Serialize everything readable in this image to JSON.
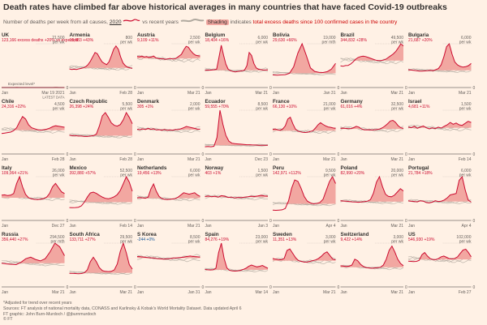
{
  "header": {
    "title": "Death rates have climbed far above historical averages in many countries that have faced Covid-19 outbreaks",
    "sub_prefix": "Number of deaths per week from all causes,",
    "sub_year": "2020",
    "sub_vs": "vs recent years",
    "sub_shading": "Shading",
    "sub_indicates": "indicates",
    "sub_red": "total excess deaths since 100 confirmed cases in the country"
  },
  "colors": {
    "background": "#fff1e5",
    "line": "#cc0a2e",
    "fill": "#f2a7a1",
    "history": "#b0a99f",
    "text": "#33302e"
  },
  "chart_data": [
    {
      "type": "line",
      "country": "UK",
      "stat": "123,166 excess deaths +20% vs expected",
      "ymax": "21,500",
      "ymax_unit": "per wk",
      "x_start": "Jan",
      "x_end": "Mar 19 2021",
      "extra_label": "LATEST DATA",
      "annotation": "Expected level*",
      "values": [
        10.5,
        10,
        10.2,
        10.4,
        10.8,
        10.4,
        14,
        19,
        21.4,
        17,
        13,
        10,
        9.6,
        9.3,
        9.1,
        9,
        9,
        9.1,
        9.4,
        9.6,
        10,
        10.3,
        10.8,
        11.5,
        12,
        12.3,
        13.3,
        17,
        20,
        21.5,
        18,
        14.5,
        12,
        11
      ]
    },
    {
      "type": "line",
      "country": "Armenia",
      "stat": "10,983 +43%",
      "ymax": "800",
      "ymax_unit": "per wk",
      "x_start": "Jan",
      "x_end": "Feb 28",
      "values": [
        340,
        330,
        335,
        330,
        340,
        350,
        360,
        380,
        420,
        480,
        560,
        640,
        620,
        540,
        470,
        440,
        420,
        470,
        580,
        700,
        760,
        700,
        560,
        450,
        400,
        370,
        360,
        350
      ]
    },
    {
      "type": "line",
      "country": "Austria",
      "stat": "9,109 +11%",
      "ymax": "2,500",
      "ymax_unit": "per wk",
      "x_start": "Jan",
      "x_end": "Mar 21",
      "values": [
        1780,
        1760,
        1790,
        1740,
        1770,
        1720,
        1740,
        1800,
        1700,
        1660,
        1640,
        1650,
        1610,
        1630,
        1660,
        1640,
        1630,
        1700,
        1800,
        1900,
        2150,
        2350,
        2300,
        2100,
        1950,
        1850,
        1820,
        1800
      ]
    },
    {
      "type": "line",
      "country": "Belgium",
      "stat": "18,404 +16%",
      "ymax": "6,000",
      "ymax_unit": "per wk",
      "x_start": "Jan",
      "x_end": "Mar 21",
      "values": [
        2350,
        2400,
        2380,
        2400,
        2450,
        2500,
        4100,
        5800,
        4400,
        3200,
        2500,
        2300,
        2200,
        2150,
        2200,
        2250,
        2300,
        2400,
        3000,
        4800,
        4400,
        3300,
        2700,
        2500,
        2450,
        2400,
        2400,
        2400
      ]
    },
    {
      "type": "line",
      "country": "Bolivia",
      "stat": "29,630 +66%",
      "ymax": "19,000",
      "ymax_unit": "per mth",
      "x_start": "Jan",
      "x_end": "Jan 31",
      "values": [
        5500,
        5400,
        5500,
        5600,
        6200,
        9000,
        15000,
        19000,
        14000,
        8500,
        7000,
        6600,
        6500,
        6900,
        8000,
        10500
      ]
    },
    {
      "type": "line",
      "country": "Brazil",
      "stat": "344,832 +28%",
      "ymax": "49,500",
      "ymax_unit": "per wk",
      "x_start": "Jan",
      "x_end": "Mar 21",
      "values": [
        24500,
        24000,
        24800,
        25000,
        26500,
        29000,
        32000,
        34000,
        35000,
        35500,
        35000,
        34000,
        33000,
        32000,
        31000,
        30500,
        30500,
        31000,
        32000,
        34000,
        36000,
        38000,
        41000,
        45000,
        49500,
        47000
      ]
    },
    {
      "type": "line",
      "country": "Bulgaria",
      "stat": "21,687 +20%",
      "ymax": "6,000",
      "ymax_unit": "per wk",
      "x_start": "Jan",
      "x_end": "Mar 21",
      "values": [
        2450,
        2400,
        2350,
        2300,
        2250,
        2250,
        2280,
        2300,
        2350,
        2300,
        2450,
        2600,
        3100,
        4200,
        5600,
        6000,
        4600,
        3500,
        3100,
        2900,
        2800,
        2850,
        3000,
        3300
      ]
    },
    {
      "type": "line",
      "country": "Chile",
      "stat": "24,316 +22%",
      "ymax": "4,500",
      "ymax_unit": "per wk",
      "x_start": "Jan",
      "x_end": "Feb 28",
      "values": [
        2100,
        2150,
        2200,
        2250,
        2400,
        2700,
        3300,
        3850,
        3600,
        3000,
        2700,
        2600,
        2500,
        2450,
        2500,
        2550,
        2650,
        2800,
        2900,
        2850,
        2800,
        2750
      ]
    },
    {
      "type": "line",
      "country": "Czech Republic",
      "stat": "26,398 +24%",
      "ymax": "5,500",
      "ymax_unit": "per wk",
      "x_start": "Jan",
      "x_end": "Feb 28",
      "values": [
        2350,
        2300,
        2300,
        2250,
        2250,
        2200,
        2200,
        2250,
        2300,
        2500,
        3500,
        4800,
        5200,
        4600,
        3900,
        3600,
        3500,
        3700,
        4300,
        5200,
        4600,
        3800
      ]
    },
    {
      "type": "line",
      "country": "Denmark",
      "stat": "305 +1%",
      "ymax": "2,000",
      "ymax_unit": "per wk",
      "x_start": "Jan",
      "x_end": "Mar 21",
      "values": [
        1130,
        1110,
        1150,
        1120,
        1170,
        1130,
        1150,
        1100,
        1110,
        1090,
        1120,
        1080,
        1100,
        1090,
        1120,
        1110,
        1150,
        1200,
        1260,
        1230,
        1200,
        1170,
        1140,
        1130
      ]
    },
    {
      "type": "line",
      "country": "Ecuador",
      "stat": "59,555 +70%",
      "ymax": "8,500",
      "ymax_unit": "per wk",
      "x_start": "Jan",
      "x_end": "Dec 23",
      "values": [
        1400,
        1450,
        1400,
        1500,
        3200,
        8500,
        5800,
        3600,
        2500,
        2100,
        2000,
        1950,
        1900,
        1850,
        1800,
        1800,
        1750,
        1750,
        1700,
        1700,
        1700,
        1700
      ]
    },
    {
      "type": "line",
      "country": "France",
      "stat": "66,130 +10%",
      "ymax": "21,000",
      "ymax_unit": "per wk",
      "x_start": "Jan",
      "x_end": "Mar 21",
      "values": [
        11800,
        12000,
        11600,
        11400,
        12000,
        13500,
        16800,
        17600,
        14500,
        12000,
        11000,
        10600,
        10400,
        10300,
        10500,
        10800,
        11200,
        12500,
        14000,
        15000,
        14200,
        13500,
        13000,
        12800,
        12500,
        12300
      ]
    },
    {
      "type": "line",
      "country": "Germany",
      "stat": "61,016 +4%",
      "ymax": "32,500",
      "ymax_unit": "per wk",
      "x_start": "Jan",
      "x_end": "Mar 21",
      "values": [
        19000,
        19200,
        19000,
        18800,
        18900,
        19500,
        20500,
        20000,
        18600,
        18000,
        17900,
        18000,
        17800,
        18000,
        18200,
        18600,
        19500,
        20800,
        22500,
        24500,
        25000,
        23500,
        21000,
        19500,
        19000
      ]
    },
    {
      "type": "line",
      "country": "Israel",
      "stat": "4,681 +11%",
      "ymax": "1,500",
      "ymax_unit": "per wk",
      "x_start": "Jan",
      "x_end": "Feb 14",
      "values": [
        920,
        900,
        950,
        880,
        920,
        960,
        900,
        860,
        900,
        870,
        920,
        890,
        950,
        1000,
        1080,
        1020,
        1060,
        1000,
        980,
        1050,
        1120,
        1080
      ]
    },
    {
      "type": "line",
      "country": "Italy",
      "stat": "109,064 +21%",
      "ymax": "26,000",
      "ymax_unit": "per wk",
      "x_start": "Jan",
      "x_end": "Dec 27",
      "values": [
        15000,
        15200,
        14800,
        15000,
        16000,
        22000,
        26000,
        20000,
        15500,
        13500,
        12800,
        12500,
        12400,
        12600,
        13000,
        13800,
        16000,
        20000,
        22000,
        19500,
        17000,
        16000
      ]
    },
    {
      "type": "line",
      "country": "Mexico",
      "stat": "392,880 +57%",
      "ymax": "52,500",
      "ymax_unit": "per wk",
      "x_start": "Jan",
      "x_end": "Feb 14",
      "values": [
        15500,
        15400,
        15500,
        15800,
        17500,
        22000,
        28000,
        33000,
        34000,
        32500,
        30000,
        28000,
        26500,
        26000,
        27000,
        28500,
        31000,
        36000,
        44000,
        52500,
        46000,
        35000
      ]
    },
    {
      "type": "line",
      "country": "Netherlands",
      "stat": "19,456 +13%",
      "ymax": "6,000",
      "ymax_unit": "per wk",
      "x_start": "Jan",
      "x_end": "Mar 21",
      "values": [
        3100,
        3150,
        3100,
        3050,
        3200,
        4300,
        5000,
        4000,
        3300,
        3000,
        2900,
        2850,
        2900,
        2950,
        3000,
        3200,
        3500,
        3800,
        3700,
        3600,
        3700,
        3800,
        3500,
        3300
      ]
    },
    {
      "type": "line",
      "country": "Norway",
      "stat": "403 +1%",
      "ymax": "1,500",
      "ymax_unit": "per wk",
      "x_start": "Jan",
      "x_end": "Jan 3",
      "values": [
        820,
        840,
        810,
        830,
        800,
        850,
        830,
        790,
        800,
        770,
        790,
        780,
        800,
        810,
        830,
        820,
        840,
        860,
        840,
        830
      ]
    },
    {
      "type": "line",
      "country": "Peru",
      "stat": "142,971 +112%",
      "ymax": "9,500",
      "ymax_unit": "per wk",
      "x_start": "Jan",
      "x_end": "Apr 4",
      "values": [
        2250,
        2200,
        2250,
        2300,
        2600,
        4200,
        7000,
        8800,
        8500,
        7000,
        5200,
        4200,
        3800,
        3600,
        3700,
        3900,
        4600,
        6500,
        8400,
        9500,
        8000
      ]
    },
    {
      "type": "line",
      "country": "Poland",
      "stat": "82,990 +20%",
      "ymax": "20,000",
      "ymax_unit": "per wk",
      "x_start": "Jan",
      "x_end": "Mar 21",
      "values": [
        9000,
        8900,
        8800,
        8600,
        8500,
        8400,
        8300,
        8500,
        8600,
        8800,
        9500,
        12500,
        17500,
        20000,
        15500,
        12000,
        11000,
        10800,
        11500,
        13000,
        14500,
        13500
      ]
    },
    {
      "type": "line",
      "country": "Portugal",
      "stat": "21,784 +18%",
      "ymax": "6,000",
      "ymax_unit": "per wk",
      "x_start": "Jan",
      "x_end": "Apr 4",
      "values": [
        2700,
        2650,
        2600,
        2550,
        2700,
        2650,
        2450,
        2400,
        2500,
        2700,
        2600,
        2650,
        2800,
        3100,
        3500,
        3600,
        3700,
        5500,
        6000,
        4200,
        2800,
        2500
      ]
    },
    {
      "type": "line",
      "country": "Russia",
      "stat": "356,440 +27%",
      "ymax": "294,500",
      "ymax_unit": "per mth",
      "x_start": "Jan",
      "x_end": "Mar 21",
      "values": [
        160000,
        155000,
        152000,
        150000,
        165000,
        190000,
        200000,
        185000,
        175000,
        190000,
        235000,
        294500,
        270000,
        210000
      ]
    },
    {
      "type": "line",
      "country": "South Africa",
      "stat": "133,711 +27%",
      "ymax": "29,500",
      "ymax_unit": "per wk",
      "x_start": "Jan",
      "x_end": "Mar 21",
      "values": [
        9200,
        9100,
        9000,
        8900,
        9000,
        9500,
        11500,
        17000,
        20000,
        17000,
        13000,
        11000,
        10500,
        10300,
        10500,
        11500,
        15500,
        24000,
        29500,
        23000,
        15000,
        12000
      ]
    },
    {
      "type": "line",
      "country": "S Korea",
      "stat": "-244 +0%",
      "stat_color": "#0f5499",
      "ymax": "8,500",
      "ymax_unit": "per wk",
      "x_start": "Jan",
      "x_end": "Jan 31",
      "values": [
        5900,
        5850,
        5800,
        5700,
        5650,
        5600,
        5500,
        5450,
        5400,
        5450,
        5500,
        5600,
        5650,
        5700,
        5800,
        5900,
        6000,
        5900,
        5850,
        5800
      ]
    },
    {
      "type": "line",
      "country": "Spain",
      "stat": "84,276 +19%",
      "ymax": "23,000",
      "ymax_unit": "per wk",
      "x_start": "Jan",
      "x_end": "Mar 14",
      "values": [
        9200,
        9000,
        8900,
        9000,
        9800,
        18000,
        23000,
        15000,
        10000,
        8700,
        8400,
        8300,
        8400,
        8700,
        9200,
        9800,
        10800,
        11500,
        11000,
        10500,
        10800,
        11300,
        10500,
        9800
      ]
    },
    {
      "type": "line",
      "country": "Sweden",
      "stat": "11,351 +13%",
      "ymax": "3,000",
      "ymax_unit": "per wk",
      "x_start": "Jan",
      "x_end": "Mar 21",
      "values": [
        1950,
        1900,
        1880,
        1860,
        1950,
        2500,
        2600,
        2300,
        2000,
        1800,
        1750,
        1700,
        1700,
        1750,
        1800,
        1850,
        1950,
        2100,
        2300,
        2400,
        2150,
        1900,
        1850
      ]
    },
    {
      "type": "line",
      "country": "Switzerland",
      "stat": "9,422 +14%",
      "ymax": "3,000",
      "ymax_unit": "per wk",
      "x_start": "Jan",
      "x_end": "Mar 21",
      "values": [
        1450,
        1430,
        1400,
        1420,
        1500,
        1900,
        1800,
        1550,
        1400,
        1320,
        1300,
        1280,
        1300,
        1320,
        1350,
        1500,
        1900,
        2500,
        2800,
        2400,
        1900,
        1600,
        1450
      ]
    },
    {
      "type": "line",
      "country": "US",
      "stat": "546,930 +19%",
      "ymax": "102,000",
      "ymax_unit": "per wk",
      "x_start": "Jan",
      "x_end": "Feb 27",
      "values": [
        60000,
        59500,
        59000,
        59500,
        62000,
        75000,
        80000,
        72000,
        66000,
        64000,
        63500,
        66000,
        70000,
        72000,
        69000,
        66000,
        65000,
        66500,
        70000,
        78000,
        86000,
        88000,
        80000,
        70000
      ]
    }
  ],
  "footer": {
    "note": "*Adjusted for trend over recent years",
    "sources": "Sources: FT analysis of national mortality data, CONASS and Karlinsky & Kobak's World Mortality Dataset. Data updated April 6",
    "credit1": "FT graphic: John Burn-Murdoch / @jburnmurdoch",
    "credit2": "© FT"
  }
}
